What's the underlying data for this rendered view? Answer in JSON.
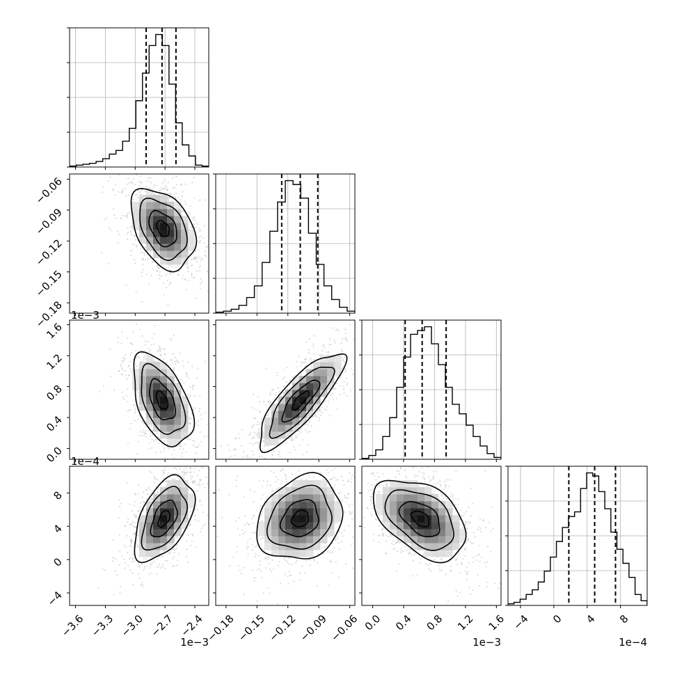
{
  "chart_data": {
    "type": "corner",
    "dimensions": 4,
    "colors": {
      "hist_line": "#000000",
      "contour_line": "#000000",
      "quantile_line": "#000000",
      "grid": "#b0b0b0",
      "density_dark": "#000000",
      "density_light": "#ffffff",
      "scatter_point": "#9a9a9a"
    },
    "params": [
      {
        "range": [
          -3.66,
          -2.26
        ],
        "ticks": [
          -3.6,
          -3.3,
          -3.0,
          -2.7,
          -2.4
        ],
        "tick_labels": [
          "−3.6",
          "−3.3",
          "−3.0",
          "−2.7",
          "−2.4"
        ],
        "offset_label": "1e−3",
        "quantiles": [
          -2.89,
          -2.73,
          -2.59
        ],
        "hist": [
          0.5,
          1,
          1.5,
          2,
          3,
          4.5,
          7,
          9,
          14,
          21,
          36,
          51,
          66,
          72,
          66,
          45,
          24,
          12,
          6,
          1,
          0.5
        ]
      },
      {
        "range": [
          -0.19,
          -0.055
        ],
        "ticks": [
          -0.18,
          -0.15,
          -0.12,
          -0.09,
          -0.06
        ],
        "tick_labels": [
          "−0.18",
          "−0.15",
          "−0.12",
          "−0.09",
          "−0.06"
        ],
        "offset_label": "",
        "quantiles": [
          -0.126,
          -0.108,
          -0.091
        ],
        "hist": [
          0.5,
          1,
          2,
          4,
          8,
          14,
          26,
          42,
          57,
          68,
          66,
          59,
          41,
          25,
          14,
          7,
          3,
          1
        ]
      },
      {
        "range": [
          -0.00014,
          0.00166
        ],
        "ticks": [
          0.0,
          0.0004,
          0.0008,
          0.0012,
          0.0016
        ],
        "tick_labels": [
          "0.0",
          "0.4",
          "0.8",
          "1.2",
          "1.6"
        ],
        "offset_label": "1e−3",
        "quantiles": [
          0.00042,
          0.00064,
          0.00095
        ],
        "hist": [
          0.5,
          2,
          5,
          12,
          22,
          38,
          54,
          66,
          68,
          70,
          61,
          50,
          38,
          29,
          24,
          18,
          12,
          7,
          3,
          1
        ]
      },
      {
        "range": [
          -0.00055,
          0.00112
        ],
        "ticks": [
          -0.0004,
          0.0,
          0.0004,
          0.0008
        ],
        "tick_labels": [
          "−4",
          "0",
          "4",
          "8"
        ],
        "offset_label": "1e−4",
        "quantiles": [
          0.00018,
          0.00049,
          0.00074
        ],
        "hist": [
          1,
          2,
          4,
          7,
          10,
          15,
          22,
          31,
          41,
          50,
          57,
          60,
          75,
          85,
          83,
          73,
          62,
          47,
          36,
          27,
          18,
          7,
          3
        ]
      }
    ],
    "pairs": [
      {
        "row": 1,
        "col": 0,
        "center": [
          -2.72,
          -0.108
        ],
        "sigma": [
          0.14,
          0.017
        ],
        "rho": -0.38
      },
      {
        "row": 2,
        "col": 0,
        "center": [
          -2.73,
          0.00062
        ],
        "sigma": [
          0.13,
          0.00026
        ],
        "rho": -0.48
      },
      {
        "row": 2,
        "col": 1,
        "center": [
          -0.108,
          0.00062
        ],
        "sigma": [
          0.018,
          0.00027
        ],
        "rho": 0.82
      },
      {
        "row": 3,
        "col": 0,
        "center": [
          -2.71,
          0.00049
        ],
        "sigma": [
          0.13,
          0.00022
        ],
        "rho": 0.5
      },
      {
        "row": 3,
        "col": 1,
        "center": [
          -0.108,
          0.00049
        ],
        "sigma": [
          0.018,
          0.00022
        ],
        "rho": 0.2
      },
      {
        "row": 3,
        "col": 2,
        "center": [
          0.00062,
          0.00049
        ],
        "sigma": [
          0.00026,
          0.00021
        ],
        "rho": -0.45
      }
    ]
  }
}
